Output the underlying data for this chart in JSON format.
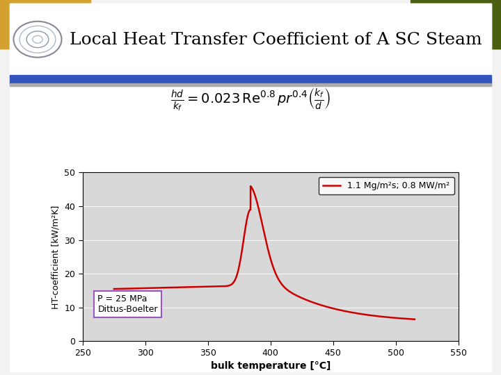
{
  "title": "Local Heat Transfer Coefficient of A SC Steam",
  "xlabel": "bulk temperature [°C]",
  "ylabel": "HT-coefficient [kW/m²K]",
  "xlim": [
    250,
    550
  ],
  "ylim": [
    0,
    50
  ],
  "xticks": [
    250,
    300,
    350,
    400,
    450,
    500,
    550
  ],
  "yticks": [
    0,
    10,
    20,
    30,
    40,
    50
  ],
  "line_color": "#cc0000",
  "line_label": "1.1 Mg/m²s; 0.8 MW/m²",
  "annotation_line1": "P = 25 MPa",
  "annotation_line2": "Dittus-Boelter",
  "bg_color": "#f2f2f2",
  "slide_bg": "#ffffff",
  "header_bg": "#ffffff",
  "blue_bar_color": "#3366cc",
  "green_bar_color": "#336600",
  "title_color": "#000000",
  "title_fontsize": 18,
  "plot_bg": "#d8d8d8",
  "outer_bg_left": "#e8c878",
  "outer_bg_right": "#558833",
  "ann_box_color": "#aa88cc"
}
